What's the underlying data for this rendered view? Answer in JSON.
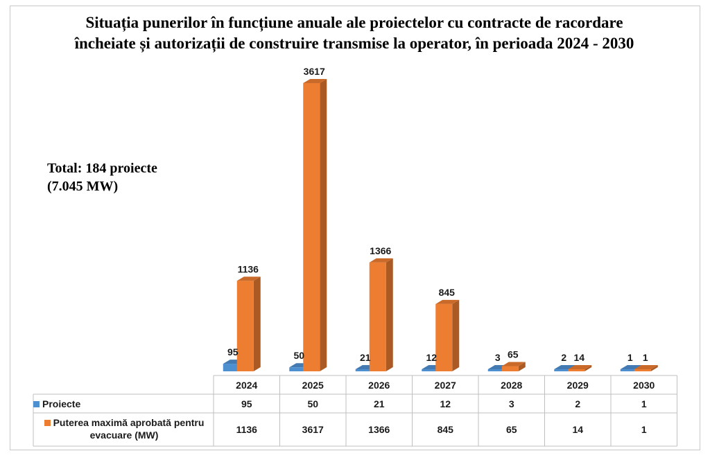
{
  "chart_data": {
    "type": "bar",
    "title_lines": [
      "Situația punerilor în funcțiune anuale ale proiectelor cu contracte de racordare",
      "încheiate și autorizații de construire transmise la operator, în perioada 2024 - 2030"
    ],
    "annotation_lines": [
      "Total: 184 proiecte",
      "(7.045 MW)"
    ],
    "categories": [
      "2024",
      "2025",
      "2026",
      "2027",
      "2028",
      "2029",
      "2030"
    ],
    "series": [
      {
        "name": "Proiecte",
        "values": [
          95,
          50,
          21,
          12,
          3,
          2,
          1
        ],
        "color": "#4e8fd0"
      },
      {
        "name": "Puterea maximă aprobată pentru evacuare (MW)",
        "values": [
          1136,
          3617,
          1366,
          845,
          65,
          14,
          1
        ],
        "color": "#ed7d31"
      }
    ],
    "ylim": [
      0,
      3617
    ],
    "grid": false,
    "legend": "data-table",
    "data_table": true
  }
}
